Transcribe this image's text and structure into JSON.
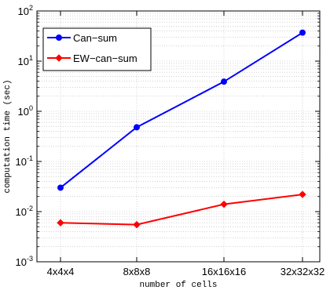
{
  "chart_data": {
    "type": "line",
    "title": "",
    "xlabel": "number of cells",
    "ylabel": "computation time (sec)",
    "yscale": "log",
    "ylim": [
      0.001,
      100
    ],
    "grid": true,
    "legend_position": "top-left",
    "categories": [
      "4x4x4",
      "8x8x8",
      "16x16x16",
      "32x32x32"
    ],
    "y_ticks": [
      {
        "value": 0.001,
        "base": "10",
        "exp": "-3"
      },
      {
        "value": 0.01,
        "base": "10",
        "exp": "-2"
      },
      {
        "value": 0.1,
        "base": "10",
        "exp": "-1"
      },
      {
        "value": 1,
        "base": "10",
        "exp": "0"
      },
      {
        "value": 10,
        "base": "10",
        "exp": "1"
      },
      {
        "value": 100,
        "base": "10",
        "exp": "2"
      }
    ],
    "series": [
      {
        "name": "Can−sum",
        "color": "#0000ff",
        "marker": "circle",
        "values": [
          0.03,
          0.48,
          3.9,
          37
        ]
      },
      {
        "name": "EW−can−sum",
        "color": "#ff0000",
        "marker": "diamond",
        "values": [
          0.006,
          0.0055,
          0.014,
          0.022
        ]
      }
    ]
  }
}
